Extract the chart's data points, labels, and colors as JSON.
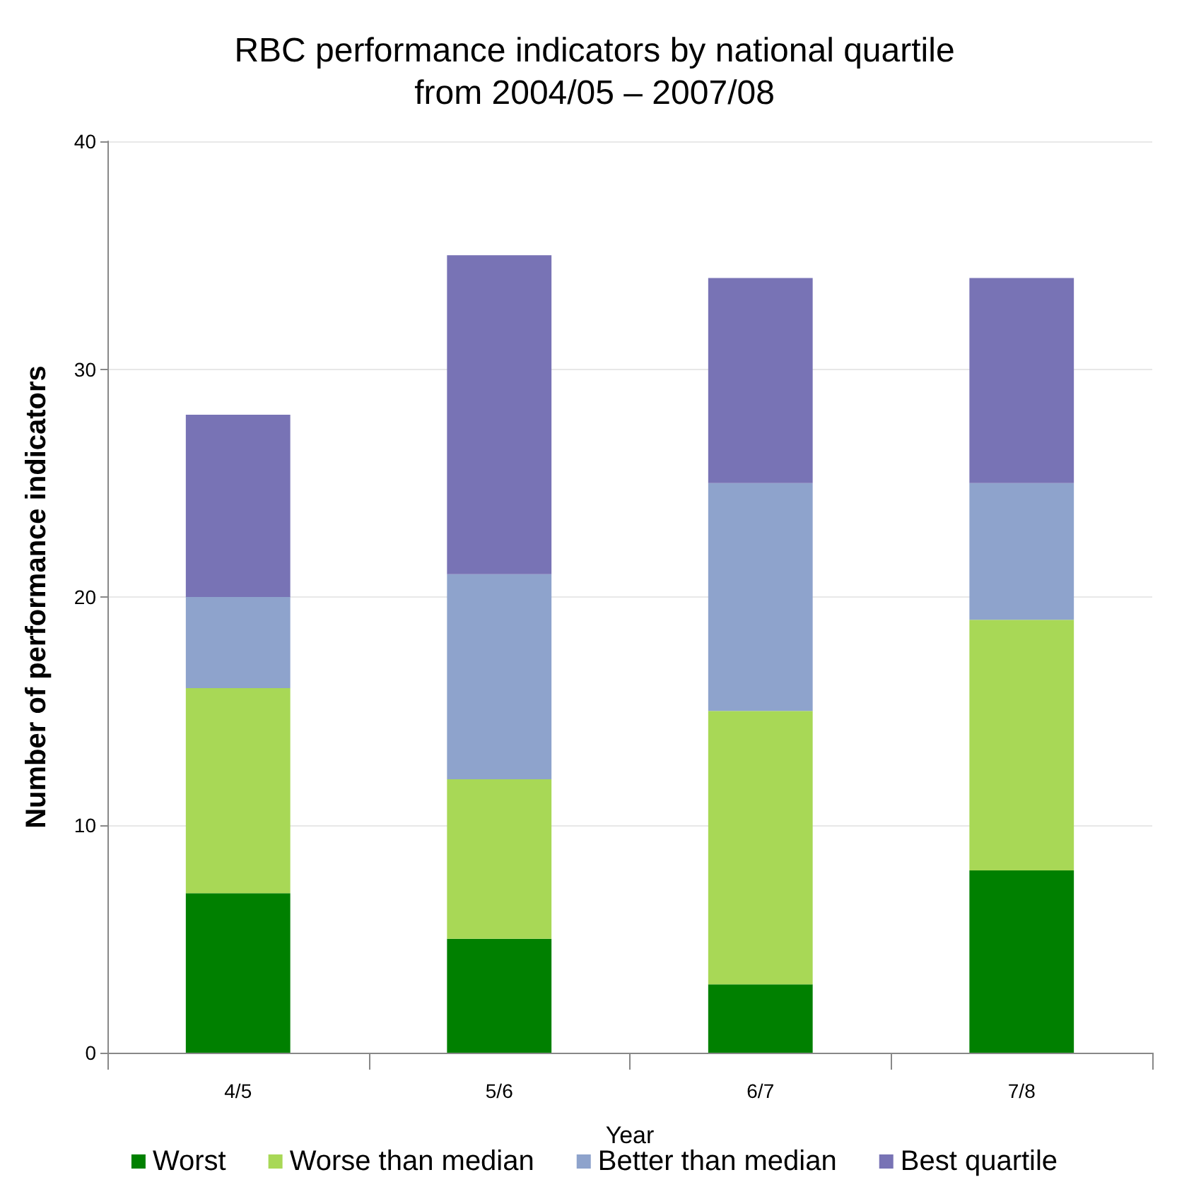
{
  "chart_data": {
    "type": "bar",
    "title": "RBC performance indicators by national quartile\nfrom 2004/05 – 2007/08",
    "xlabel": "Year",
    "ylabel": "Number of performance indicators",
    "categories": [
      "4/5",
      "5/6",
      "6/7",
      "7/8"
    ],
    "stacked": true,
    "ylim": [
      0,
      40
    ],
    "yticks": [
      0,
      10,
      20,
      30,
      40
    ],
    "grid": "y",
    "legend": "bottom",
    "series": [
      {
        "name": "Worst",
        "color": "#008000",
        "values": [
          7,
          5,
          3,
          8
        ]
      },
      {
        "name": "Worse than median",
        "color": "#a8d856",
        "values": [
          9,
          7,
          12,
          11
        ]
      },
      {
        "name": "Better than median",
        "color": "#8ea3cc",
        "values": [
          4,
          9,
          10,
          6
        ]
      },
      {
        "name": "Best quartile",
        "color": "#7873b5",
        "values": [
          8,
          14,
          9,
          9
        ]
      }
    ]
  }
}
